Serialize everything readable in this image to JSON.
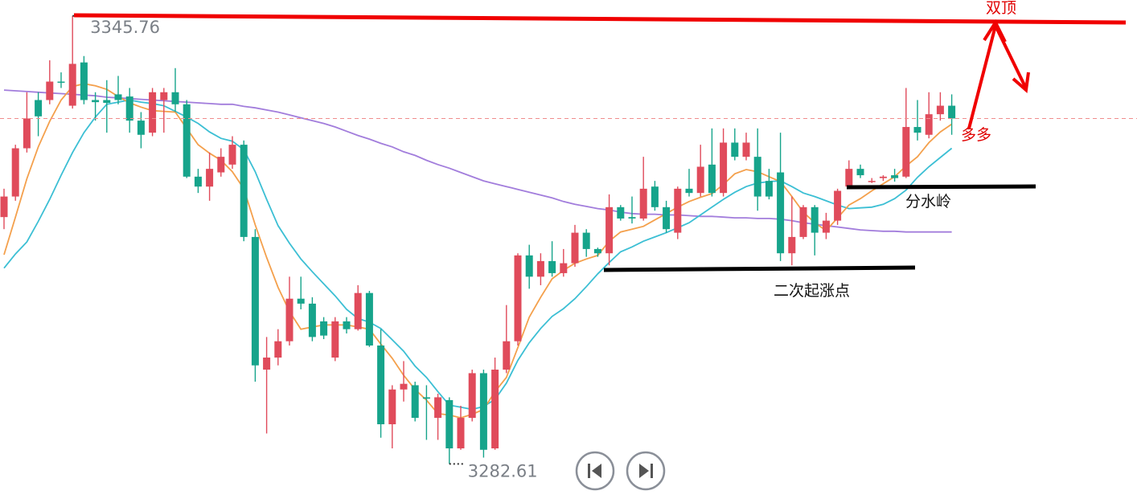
{
  "chart_data": {
    "type": "candlestick",
    "up_color": "#e04b5b",
    "down_color": "#16a48b",
    "ylim": [
      3277.1,
      3348.0
    ],
    "open": [
      3317.4,
      3320.3,
      3327.1,
      3333.9,
      3333.9,
      3336.5,
      3333.1,
      3339.2,
      3333.9,
      3333.9,
      3334.7,
      3334.4,
      3331.0,
      3329.3,
      3333.9,
      3335.0,
      3333.3,
      3323.1,
      3321.7,
      3323.7,
      3324.8,
      3327.6,
      3314.6,
      3295.9,
      3297.6,
      3299.9,
      3305.9,
      3305.2,
      3302.7,
      3297.6,
      3302.7,
      3301.6,
      3306.7,
      3299.3,
      3288.2,
      3293.1,
      3293.7,
      3292.0,
      3289.1,
      3291.6,
      3284.8,
      3289.1,
      3295.4,
      3284.8,
      3295.9,
      3299.9,
      3312.0,
      3309.0,
      3311.2,
      3309.5,
      3310.9,
      3315.2,
      3312.9,
      3312.3,
      3318.8,
      3317.4,
      3317.2,
      3321.7,
      3318.8,
      3315.2,
      3321.4,
      3320.8,
      3324.8,
      3320.8,
      3327.9,
      3325.9,
      3325.9,
      3322.5,
      3323.7,
      3312.3,
      3314.6,
      3318.8,
      3315.2,
      3316.9,
      3321.7,
      3324.2,
      3322.5,
      3322.9,
      3323.3,
      3323.1,
      3330.1,
      3329.0,
      3331.9,
      3333.1
    ],
    "high": [
      3321.4,
      3327.6,
      3335.0,
      3335.0,
      3339.5,
      3337.8,
      3345.76,
      3340.1,
      3335.0,
      3336.7,
      3337.3,
      3335.6,
      3332.2,
      3335.6,
      3335.6,
      3338.4,
      3333.9,
      3324.2,
      3326.5,
      3327.1,
      3328.8,
      3328.2,
      3315.7,
      3300.5,
      3301.6,
      3309.0,
      3309.0,
      3306.1,
      3303.3,
      3303.3,
      3303.3,
      3307.8,
      3307.0,
      3301.6,
      3293.7,
      3297.1,
      3294.2,
      3293.7,
      3292.5,
      3292.0,
      3290.8,
      3295.9,
      3295.9,
      3297.6,
      3305.0,
      3312.3,
      3313.5,
      3312.3,
      3314.0,
      3312.9,
      3316.3,
      3315.7,
      3313.1,
      3320.6,
      3319.1,
      3320.3,
      3325.9,
      3322.5,
      3319.7,
      3321.7,
      3324.2,
      3327.6,
      3329.9,
      3329.9,
      3329.9,
      3329.3,
      3329.9,
      3324.2,
      3329.3,
      3320.3,
      3319.1,
      3319.1,
      3318.0,
      3321.4,
      3325.4,
      3324.8,
      3322.9,
      3323.3,
      3324.2,
      3335.6,
      3333.9,
      3335.0,
      3335.0,
      3334.7
    ],
    "low": [
      3315.7,
      3319.7,
      3326.5,
      3328.8,
      3333.3,
      3335.6,
      3332.7,
      3333.3,
      3331.0,
      3329.3,
      3333.3,
      3329.3,
      3327.1,
      3328.8,
      3329.3,
      3332.2,
      3322.9,
      3320.8,
      3319.7,
      3323.1,
      3324.2,
      3314.0,
      3294.2,
      3286.9,
      3296.5,
      3299.3,
      3304.4,
      3299.9,
      3300.2,
      3297.1,
      3301.0,
      3301.4,
      3299.1,
      3286.3,
      3284.8,
      3291.4,
      3288.6,
      3286.0,
      3286.0,
      3282.61,
      3284.6,
      3288.6,
      3283.5,
      3284.6,
      3295.4,
      3299.3,
      3307.3,
      3307.8,
      3309.0,
      3309.0,
      3310.4,
      3311.8,
      3311.8,
      3310.6,
      3316.9,
      3316.5,
      3316.9,
      3318.3,
      3315.2,
      3314.3,
      3320.3,
      3320.3,
      3320.3,
      3320.3,
      3325.4,
      3325.4,
      3318.3,
      3319.9,
      3311.2,
      3310.6,
      3314.3,
      3312.0,
      3314.3,
      3316.3,
      3321.4,
      3322.9,
      3322.2,
      3322.5,
      3322.4,
      3322.9,
      3328.2,
      3328.5,
      3331.0,
      3329.0
    ],
    "close": [
      3320.3,
      3327.1,
      3331.3,
      3331.6,
      3336.5,
      3336.4,
      3339.0,
      3333.9,
      3333.6,
      3333.5,
      3333.9,
      3331.0,
      3329.0,
      3335.0,
      3335.0,
      3333.3,
      3323.1,
      3321.7,
      3324.2,
      3325.9,
      3327.6,
      3314.6,
      3296.5,
      3297.6,
      3299.9,
      3305.9,
      3305.2,
      3300.5,
      3300.7,
      3302.7,
      3301.6,
      3306.7,
      3299.3,
      3288.2,
      3293.1,
      3293.9,
      3289.1,
      3291.8,
      3292.0,
      3284.8,
      3289.1,
      3295.4,
      3284.6,
      3295.9,
      3299.9,
      3312.0,
      3309.0,
      3311.2,
      3309.5,
      3310.9,
      3315.2,
      3312.9,
      3312.3,
      3318.8,
      3317.2,
      3317.2,
      3321.4,
      3318.8,
      3315.7,
      3321.4,
      3320.8,
      3324.5,
      3320.8,
      3327.9,
      3325.9,
      3327.9,
      3320.3,
      3320.3,
      3312.3,
      3314.6,
      3318.8,
      3315.2,
      3316.9,
      3321.1,
      3324.2,
      3323.3,
      3322.5,
      3323.1,
      3322.9,
      3330.1,
      3329.3,
      3331.9,
      3333.1,
      3331.3
    ],
    "series": [
      {
        "color": "#a27ddc",
        "values": [
          3335.3,
          3335.2,
          3335.1,
          3335.0,
          3334.9,
          3334.8,
          3334.7,
          3334.6,
          3334.5,
          3334.3,
          3334.2,
          3334.1,
          3334.0,
          3333.9,
          3333.8,
          3333.7,
          3333.6,
          3333.5,
          3333.4,
          3333.3,
          3333.3,
          3333.0,
          3332.8,
          3332.5,
          3332.2,
          3331.8,
          3331.4,
          3331.0,
          3330.6,
          3330.1,
          3329.5,
          3328.9,
          3328.4,
          3327.8,
          3327.3,
          3326.6,
          3326.1,
          3325.4,
          3324.8,
          3324.3,
          3323.7,
          3323.1,
          3322.5,
          3322.1,
          3321.7,
          3321.3,
          3320.9,
          3320.5,
          3320.1,
          3319.6,
          3319.2,
          3318.9,
          3318.6,
          3318.4,
          3318.1,
          3317.9,
          3317.8,
          3317.8,
          3317.7,
          3317.7,
          3317.6,
          3317.5,
          3317.5,
          3317.4,
          3317.3,
          3317.3,
          3317.2,
          3317.2,
          3317.1,
          3316.9,
          3316.6,
          3316.4,
          3316.2,
          3316.0,
          3315.8,
          3315.6,
          3315.5,
          3315.4,
          3315.4,
          3315.3,
          3315.3,
          3315.3,
          3315.3,
          3315.3
        ]
      },
      {
        "color": "#3cbfd4",
        "values": [
          3310.2,
          3312.2,
          3313.9,
          3316.8,
          3319.9,
          3323.3,
          3326.5,
          3329.3,
          3331.5,
          3333.3,
          3333.6,
          3333.9,
          3333.6,
          3333.4,
          3333.1,
          3332.3,
          3331.5,
          3330.6,
          3329.4,
          3328.5,
          3328.1,
          3326.9,
          3323.8,
          3319.9,
          3316.2,
          3313.7,
          3311.5,
          3309.7,
          3308.0,
          3306.3,
          3304.4,
          3303.1,
          3302.6,
          3301.7,
          3300.1,
          3298.5,
          3296.4,
          3294.8,
          3292.8,
          3290.9,
          3290.6,
          3290.3,
          3290.7,
          3291.7,
          3294.0,
          3297.2,
          3299.7,
          3301.7,
          3303.4,
          3304.5,
          3305.9,
          3307.6,
          3309.4,
          3311.0,
          3312.5,
          3313.2,
          3314.0,
          3314.6,
          3315.2,
          3315.9,
          3316.6,
          3317.7,
          3318.8,
          3319.9,
          3320.9,
          3321.7,
          3322.2,
          3322.4,
          3322.5,
          3321.7,
          3320.8,
          3320.3,
          3319.7,
          3319.1,
          3318.6,
          3318.7,
          3318.8,
          3319.2,
          3320.0,
          3321.2,
          3323.0,
          3324.5,
          3325.8,
          3327.1
        ]
      },
      {
        "color": "#f4a04c",
        "values": [
          3312.1,
          3317.4,
          3322.8,
          3327.3,
          3330.9,
          3333.9,
          3335.8,
          3336.2,
          3335.9,
          3335.4,
          3334.4,
          3333.5,
          3332.9,
          3332.4,
          3332.3,
          3332.2,
          3329.9,
          3327.6,
          3326.4,
          3325.4,
          3323.8,
          3321.4,
          3316.3,
          3311.7,
          3307.5,
          3304.1,
          3301.6,
          3301.9,
          3302.2,
          3302.2,
          3302.2,
          3301.9,
          3301.6,
          3299.5,
          3297.5,
          3295.1,
          3293.1,
          3291.6,
          3289.7,
          3289.5,
          3289.1,
          3289.6,
          3290.3,
          3292.8,
          3294.8,
          3299.0,
          3303.3,
          3306.1,
          3308.7,
          3309.9,
          3310.9,
          3311.5,
          3312.0,
          3314.0,
          3315.3,
          3315.7,
          3316.1,
          3317.0,
          3317.9,
          3318.8,
          3319.6,
          3320.2,
          3320.7,
          3322.0,
          3323.5,
          3324.1,
          3323.8,
          3323.1,
          3322.4,
          3320.3,
          3318.1,
          3316.6,
          3315.5,
          3317.3,
          3319.1,
          3320.0,
          3321.1,
          3322.1,
          3323.1,
          3324.6,
          3325.9,
          3327.9,
          3329.4,
          3330.5
        ]
      }
    ],
    "annotations": [
      "双顶",
      "多多",
      "分水岭",
      "二次起涨点"
    ]
  }
}
